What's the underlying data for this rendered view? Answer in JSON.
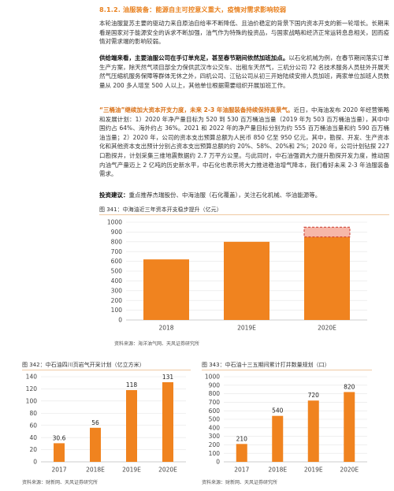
{
  "section": {
    "title": "8.1.2. 油服装备：能源自主可控意义重大，疫情对需求影响较弱"
  },
  "paragraphs": {
    "p1": "本轮油服复苏主要的驱动力来自原油自给率不断降低、且油价稳定的背景下国内资本开支的新一轮增长。长期来看是国家对于能源安全的诉求不断加强，油气作为特殊的投资品，与国家战略和经济正常运转息息相关，因而疫情对需求端的影响较弱。",
    "p2_lead": "供给端来看，主要油服公司在手订单充足，甚至春节期间依然加班加点。",
    "p2_body": "以石化机械为例，在春节期间落实订单生产方案，除天然气项目部全力保供武汉市公交车、出租车天然气，三机分公司 72 名技术服务人员驻外开展天然气压缩机服务保障等群体无休之外，四机公司、江钻公司从初三开始陆续安排人员加班，两家单位加班人员数量从 200 多人增至 500 人以上，其他单位根据需要组织开展加班工作。",
    "p3_lead": "“三桶油”继续加大资本开支力度，未来 2-3 年油服装备持续保持高景气。",
    "p3_body": "近日，中海油发布 2020 年经营策略和发展计划：1）2020 年净产量目标为 520 到 530 百万桶油当量（2019 年为 503 百万桶油当量），其中中国约占 64%、海外约占 36%。2021 和 2022 年的净产量目标分别为约 555 百万桶油当量和约 590 百万桶油当量；2）2020 年，公司的资本支出预算总额为人民币 850 亿至 950 亿元，其中，勘探、开发、生产资本化和其他资本支出预计分别占资本支出预算总额的约 20%、58%、20%和 2%；2020 年，公司计划钻探 227 口勘探井，计划采集三维地震数据约 2.7 万平方公里。与此同时，中石油强调大力提升勘探开发力度，推动国内油气产量迈上 2 亿吨的历史新水平，中石化也表示将大力推进稳油增气降本，我们看好未来 2-3 年油服装备需求。",
    "p4_lead": "投资建议：",
    "p4_body": "重点推荐杰瑞股份、中海油服（石化覆盖），关注石化机械、华油能源等。"
  },
  "figures": {
    "fig341_title": "图 341：中海油近三年资本开支稳步提升（亿元）",
    "fig341_source": "资料来源：海洋油气网、天风证券研究所",
    "fig342_title": "图 342：中石油四川页岩气开采计划（亿立方米）",
    "fig342_source": "资料来源：财新网、天风证券研究所",
    "fig343_title": "图 343：中石油十三五期间累计打井数量规划（口）",
    "fig343_source": "资料来源：财新网、天风证券研究所"
  },
  "colors": {
    "bar": "#f0831f",
    "accent": "#e9811f",
    "overlay_fill": "#f6b7a9",
    "overlay_border": "#cc3a2e"
  },
  "chart_data": [
    {
      "type": "bar",
      "title": "中海油近三年资本开支稳步提升（亿元）",
      "categories": [
        "2018",
        "2019E",
        "2020E"
      ],
      "values": [
        620,
        800,
        850
      ],
      "range_top": [
        950
      ],
      "range_note": "2020E 资本开支预算区间 850-950",
      "ylim": [
        0,
        1000
      ],
      "yticks": [
        0,
        100,
        200,
        300,
        400,
        500,
        600,
        700,
        800,
        900,
        1000
      ],
      "data_labels": false
    },
    {
      "type": "bar",
      "title": "中石油四川页岩气开采计划（亿立方米）",
      "categories": [
        "2017",
        "2018E",
        "2019E",
        "2020E"
      ],
      "values": [
        30.6,
        56,
        118,
        131
      ],
      "labels": [
        "30.6",
        "56",
        "118",
        "131"
      ],
      "ylim": [
        0,
        140
      ],
      "yticks": [
        0,
        20,
        40,
        60,
        80,
        100,
        120,
        140
      ],
      "data_labels": true
    },
    {
      "type": "bar",
      "title": "中石油十三五期间累计打井数量规划（口）",
      "categories": [
        "2017",
        "2018E",
        "2019E",
        "2020E"
      ],
      "values": [
        210,
        540,
        720,
        820
      ],
      "labels": [
        "210",
        "540",
        "720",
        "820"
      ],
      "ylim": [
        0,
        1000
      ],
      "yticks": [
        0,
        100,
        200,
        300,
        400,
        500,
        600,
        700,
        800,
        900,
        1000
      ],
      "data_labels": true
    }
  ]
}
